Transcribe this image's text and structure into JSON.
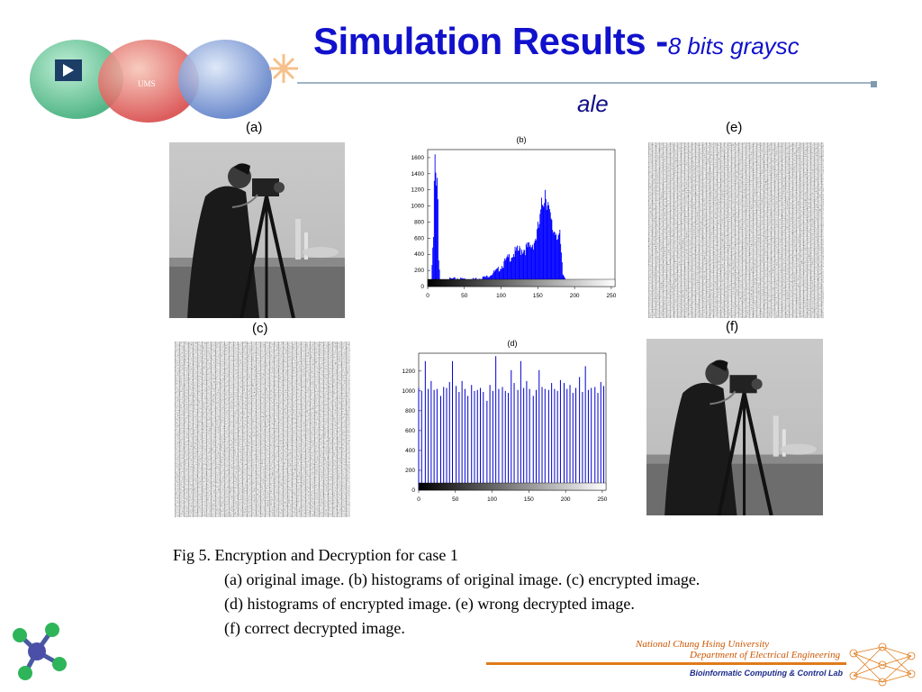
{
  "slide": {
    "title_main": "Simulation Results -",
    "title_sub_part1": "8 bits graysc",
    "title_sub_part2": "ale"
  },
  "labels": {
    "a": "(a)",
    "e": "(e)",
    "c": "(c)",
    "f": "(f)"
  },
  "logo": {
    "badge_text": "UMS",
    "play_icon": "play-icon",
    "colors": {
      "red": "#d84a4a",
      "green": "#3fae7a",
      "blue": "#5d7fc8"
    }
  },
  "chart_data": [
    {
      "id": "b",
      "type": "bar",
      "title": "(b)",
      "xlim": [
        0,
        255
      ],
      "ylim": [
        0,
        1700
      ],
      "xticks": [
        0,
        50,
        100,
        150,
        200,
        250
      ],
      "yticks": [
        0,
        200,
        400,
        600,
        800,
        1000,
        1200,
        1400,
        1600
      ],
      "color": "#0000ff",
      "colorbar": "gray",
      "profile": [
        {
          "x": 0,
          "y": 0
        },
        {
          "x": 5,
          "y": 10
        },
        {
          "x": 8,
          "y": 700
        },
        {
          "x": 9,
          "y": 1430
        },
        {
          "x": 10,
          "y": 1650
        },
        {
          "x": 11,
          "y": 1460
        },
        {
          "x": 12,
          "y": 1470
        },
        {
          "x": 13,
          "y": 1350
        },
        {
          "x": 14,
          "y": 1120
        },
        {
          "x": 15,
          "y": 300
        },
        {
          "x": 17,
          "y": 60
        },
        {
          "x": 25,
          "y": 90
        },
        {
          "x": 40,
          "y": 100
        },
        {
          "x": 60,
          "y": 90
        },
        {
          "x": 80,
          "y": 120
        },
        {
          "x": 95,
          "y": 200
        },
        {
          "x": 105,
          "y": 300
        },
        {
          "x": 115,
          "y": 400
        },
        {
          "x": 130,
          "y": 470
        },
        {
          "x": 140,
          "y": 480
        },
        {
          "x": 148,
          "y": 620
        },
        {
          "x": 153,
          "y": 800
        },
        {
          "x": 157,
          "y": 1100
        },
        {
          "x": 160,
          "y": 1220
        },
        {
          "x": 163,
          "y": 1100
        },
        {
          "x": 166,
          "y": 850
        },
        {
          "x": 170,
          "y": 700
        },
        {
          "x": 175,
          "y": 700
        },
        {
          "x": 180,
          "y": 600
        },
        {
          "x": 184,
          "y": 150
        },
        {
          "x": 190,
          "y": 70
        },
        {
          "x": 210,
          "y": 40
        },
        {
          "x": 240,
          "y": 20
        },
        {
          "x": 255,
          "y": 10
        }
      ]
    },
    {
      "id": "d",
      "type": "bar",
      "title": "(d)",
      "xlim": [
        0,
        255
      ],
      "ylim": [
        0,
        1380
      ],
      "xticks": [
        0,
        50,
        100,
        150,
        200,
        250
      ],
      "yticks": [
        0,
        200,
        400,
        600,
        800,
        1000,
        1200
      ],
      "color": "#0000cc",
      "colorbar": "gray",
      "x": [
        0,
        4,
        9,
        13,
        17,
        21,
        25,
        30,
        34,
        38,
        42,
        46,
        51,
        55,
        59,
        63,
        67,
        72,
        76,
        80,
        84,
        88,
        93,
        97,
        101,
        105,
        109,
        114,
        118,
        122,
        126,
        130,
        135,
        139,
        143,
        147,
        151,
        156,
        160,
        164,
        168,
        172,
        177,
        181,
        185,
        189,
        193,
        198,
        202,
        206,
        210,
        214,
        219,
        223,
        227,
        231,
        235,
        240,
        244,
        248,
        252
      ],
      "values": [
        1030,
        1000,
        1300,
        1020,
        1100,
        1010,
        1020,
        950,
        1040,
        1030,
        1090,
        1300,
        1050,
        990,
        1100,
        1020,
        950,
        1060,
        1000,
        1010,
        1030,
        990,
        900,
        1060,
        1000,
        1350,
        1020,
        1040,
        1000,
        980,
        1210,
        1080,
        1010,
        1300,
        1030,
        1100,
        1020,
        950,
        1010,
        1210,
        1040,
        1020,
        1010,
        1080,
        1020,
        1000,
        1110,
        1080,
        1020,
        1060,
        980,
        1030,
        1140,
        990,
        1250,
        1010,
        1030,
        1040,
        980,
        1090,
        1050
      ]
    }
  ],
  "caption": {
    "line1": "Fig 5. Encryption and Decryption for case 1",
    "line2": "(a) original image. (b) histograms of original image. (c) encrypted image.",
    "line3": "(d) histograms of encrypted image. (e) wrong decrypted image.",
    "line4": "(f) correct decrypted image."
  },
  "footer": {
    "university": "National Chung Hsing University",
    "department": "Department of Electrical Engineering",
    "lab": "Bioinformatic Computing & Control Lab"
  }
}
